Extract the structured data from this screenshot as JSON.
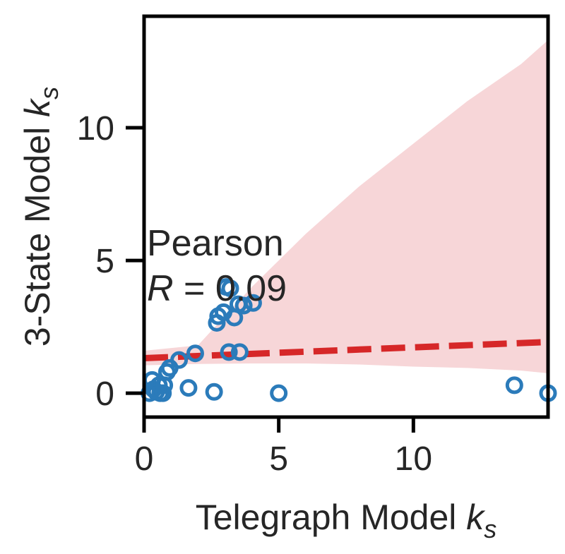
{
  "chart_data": {
    "type": "scatter",
    "title": "",
    "xlabel": {
      "main": "Telegraph Model ",
      "var": "k",
      "sub": "s"
    },
    "ylabel": {
      "main": "3-State Model ",
      "var": "k",
      "sub": "s"
    },
    "xlim": [
      0,
      15
    ],
    "ylim": [
      -0.9,
      14.2
    ],
    "xticks": [
      0,
      5,
      10
    ],
    "yticks": [
      0,
      5,
      10
    ],
    "xtick_labels": [
      "0",
      "5",
      "10"
    ],
    "ytick_labels": [
      "0",
      "5",
      "10"
    ],
    "grid": false,
    "annotation": {
      "line1": "Pearson",
      "var": "R",
      "rest": " = 0.09"
    },
    "points": [
      {
        "x": 0.2,
        "y": 0.0
      },
      {
        "x": 0.3,
        "y": 0.5
      },
      {
        "x": 0.35,
        "y": 0.15
      },
      {
        "x": 0.45,
        "y": 0.05
      },
      {
        "x": 0.55,
        "y": 0.3
      },
      {
        "x": 0.6,
        "y": 0.0
      },
      {
        "x": 0.7,
        "y": 0.0
      },
      {
        "x": 0.75,
        "y": 0.3
      },
      {
        "x": 0.85,
        "y": 0.8
      },
      {
        "x": 0.95,
        "y": 0.95
      },
      {
        "x": 1.3,
        "y": 1.25
      },
      {
        "x": 1.9,
        "y": 1.5
      },
      {
        "x": 1.65,
        "y": 0.2
      },
      {
        "x": 2.6,
        "y": 0.05
      },
      {
        "x": 2.7,
        "y": 2.65
      },
      {
        "x": 2.75,
        "y": 2.9
      },
      {
        "x": 2.95,
        "y": 3.05
      },
      {
        "x": 3.05,
        "y": 4.0
      },
      {
        "x": 3.15,
        "y": 1.55
      },
      {
        "x": 3.2,
        "y": 3.95
      },
      {
        "x": 3.35,
        "y": 2.85
      },
      {
        "x": 3.5,
        "y": 3.35
      },
      {
        "x": 3.55,
        "y": 1.55
      },
      {
        "x": 3.7,
        "y": 3.3
      },
      {
        "x": 4.05,
        "y": 3.4
      },
      {
        "x": 5.0,
        "y": 0.0
      },
      {
        "x": 13.75,
        "y": 0.3
      },
      {
        "x": 15.0,
        "y": 0.0
      }
    ],
    "fit_line": {
      "x": [
        0,
        15
      ],
      "y": [
        1.32,
        1.93
      ]
    },
    "confidence_band": {
      "x": [
        0,
        2,
        4,
        6,
        8,
        10,
        12,
        14,
        15
      ],
      "upper": [
        1.6,
        1.8,
        4.0,
        6.0,
        7.8,
        9.4,
        11.0,
        12.4,
        13.3
      ],
      "lower": [
        1.05,
        1.1,
        1.12,
        1.12,
        1.08,
        1.0,
        0.95,
        0.85,
        0.75
      ]
    },
    "colors": {
      "points": "#2b7bba",
      "fit_line": "#d62728",
      "band": "#f7d6d8",
      "axes": "#000000",
      "text": "#262626"
    }
  }
}
